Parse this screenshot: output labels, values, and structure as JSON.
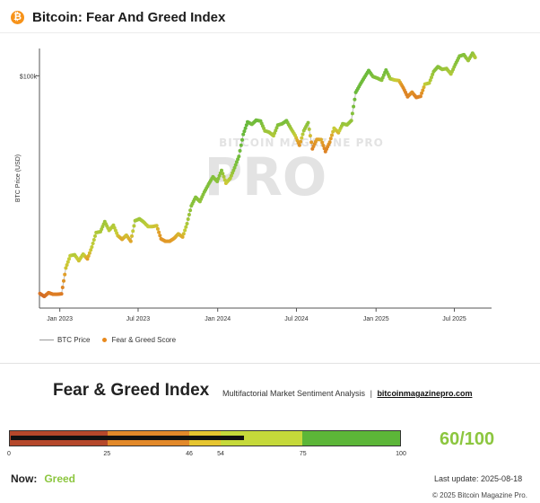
{
  "header": {
    "icon": "bitcoin-icon",
    "icon_glyph": "₿",
    "title": "Bitcoin: Fear And Greed Index"
  },
  "chart_data": {
    "type": "line",
    "title": "",
    "ylabel": "BTC Price (USD)",
    "xlabel": "",
    "y_scale": "log",
    "yticks": [
      {
        "value": 100000,
        "label": "$100k"
      }
    ],
    "ylim": [
      15000,
      125000
    ],
    "x_range": [
      "2022-11-15",
      "2025-09-25"
    ],
    "xticks": [
      {
        "date": "2023-01-01",
        "label": "Jan 2023"
      },
      {
        "date": "2023-07-01",
        "label": "Jul 2023"
      },
      {
        "date": "2024-01-01",
        "label": "Jan 2024"
      },
      {
        "date": "2024-07-01",
        "label": "Jul 2024"
      },
      {
        "date": "2025-01-01",
        "label": "Jan 2025"
      },
      {
        "date": "2025-07-01",
        "label": "Jul 2025"
      }
    ],
    "series": [
      {
        "name": "BTC Price",
        "points": [
          [
            "2022-11-16",
            16900,
            22
          ],
          [
            "2022-11-26",
            16500,
            18
          ],
          [
            "2022-12-06",
            17000,
            26
          ],
          [
            "2022-12-16",
            16800,
            27
          ],
          [
            "2022-12-26",
            16800,
            28
          ],
          [
            "2023-01-05",
            16850,
            26
          ],
          [
            "2023-01-15",
            20800,
            52
          ],
          [
            "2023-01-25",
            23000,
            55
          ],
          [
            "2023-02-04",
            23200,
            60
          ],
          [
            "2023-02-14",
            22100,
            52
          ],
          [
            "2023-02-24",
            23300,
            57
          ],
          [
            "2023-03-06",
            22400,
            46
          ],
          [
            "2023-03-16",
            24700,
            55
          ],
          [
            "2023-03-26",
            27800,
            60
          ],
          [
            "2023-04-05",
            28000,
            62
          ],
          [
            "2023-04-15",
            30400,
            65
          ],
          [
            "2023-04-25",
            28300,
            57
          ],
          [
            "2023-05-05",
            29500,
            60
          ],
          [
            "2023-05-15",
            27100,
            52
          ],
          [
            "2023-05-25",
            26300,
            47
          ],
          [
            "2023-06-04",
            27200,
            52
          ],
          [
            "2023-06-14",
            25900,
            47
          ],
          [
            "2023-06-24",
            30600,
            63
          ],
          [
            "2023-07-04",
            31100,
            65
          ],
          [
            "2023-07-14",
            30300,
            60
          ],
          [
            "2023-07-24",
            29200,
            55
          ],
          [
            "2023-08-03",
            29200,
            53
          ],
          [
            "2023-08-13",
            29400,
            52
          ],
          [
            "2023-08-23",
            26400,
            40
          ],
          [
            "2023-09-02",
            25900,
            42
          ],
          [
            "2023-09-12",
            25900,
            43
          ],
          [
            "2023-09-22",
            26500,
            46
          ],
          [
            "2023-10-02",
            27500,
            50
          ],
          [
            "2023-10-12",
            26800,
            48
          ],
          [
            "2023-10-22",
            29900,
            62
          ],
          [
            "2023-11-01",
            34600,
            70
          ],
          [
            "2023-11-11",
            37100,
            72
          ],
          [
            "2023-11-21",
            35800,
            68
          ],
          [
            "2023-12-01",
            38700,
            72
          ],
          [
            "2023-12-11",
            41300,
            73
          ],
          [
            "2023-12-21",
            43800,
            72
          ],
          [
            "2023-12-31",
            42200,
            70
          ],
          [
            "2024-01-10",
            46200,
            72
          ],
          [
            "2024-01-20",
            41600,
            52
          ],
          [
            "2024-01-30",
            43300,
            60
          ],
          [
            "2024-02-09",
            47200,
            72
          ],
          [
            "2024-02-19",
            51800,
            78
          ],
          [
            "2024-02-29",
            62000,
            82
          ],
          [
            "2024-03-10",
            68600,
            85
          ],
          [
            "2024-03-20",
            67300,
            75
          ],
          [
            "2024-03-30",
            69600,
            80
          ],
          [
            "2024-04-09",
            69100,
            77
          ],
          [
            "2024-04-19",
            63800,
            65
          ],
          [
            "2024-04-29",
            63100,
            65
          ],
          [
            "2024-05-09",
            61300,
            60
          ],
          [
            "2024-05-19",
            66900,
            72
          ],
          [
            "2024-05-29",
            67600,
            73
          ],
          [
            "2024-06-08",
            69300,
            75
          ],
          [
            "2024-06-18",
            65100,
            65
          ],
          [
            "2024-06-28",
            61500,
            55
          ],
          [
            "2024-07-08",
            56700,
            40
          ],
          [
            "2024-07-18",
            63900,
            65
          ],
          [
            "2024-07-28",
            68200,
            70
          ],
          [
            "2024-08-07",
            55100,
            32
          ],
          [
            "2024-08-17",
            59500,
            45
          ],
          [
            "2024-08-27",
            59400,
            48
          ],
          [
            "2024-09-06",
            53900,
            30
          ],
          [
            "2024-09-16",
            58200,
            40
          ],
          [
            "2024-09-26",
            65200,
            55
          ],
          [
            "2024-10-06",
            62800,
            50
          ],
          [
            "2024-10-16",
            67600,
            68
          ],
          [
            "2024-10-26",
            67000,
            65
          ],
          [
            "2024-11-05",
            69400,
            68
          ],
          [
            "2024-11-15",
            87300,
            82
          ],
          [
            "2024-11-25",
            93000,
            80
          ],
          [
            "2024-12-05",
            98600,
            78
          ],
          [
            "2024-12-15",
            104400,
            82
          ],
          [
            "2024-12-25",
            99400,
            73
          ],
          [
            "2025-01-04",
            98100,
            72
          ],
          [
            "2025-01-14",
            96500,
            70
          ],
          [
            "2025-01-24",
            104800,
            78
          ],
          [
            "2025-02-03",
            97700,
            65
          ],
          [
            "2025-02-13",
            96600,
            55
          ],
          [
            "2025-02-23",
            96200,
            52
          ],
          [
            "2025-03-05",
            90600,
            35
          ],
          [
            "2025-03-15",
            84300,
            30
          ],
          [
            "2025-03-25",
            87500,
            38
          ],
          [
            "2025-04-04",
            83800,
            30
          ],
          [
            "2025-04-14",
            84600,
            32
          ],
          [
            "2025-04-24",
            93400,
            55
          ],
          [
            "2025-05-04",
            94300,
            58
          ],
          [
            "2025-05-14",
            103500,
            68
          ],
          [
            "2025-05-24",
            107800,
            72
          ],
          [
            "2025-06-03",
            105400,
            66
          ],
          [
            "2025-06-13",
            106100,
            65
          ],
          [
            "2025-06-23",
            101500,
            60
          ],
          [
            "2025-07-03",
            109600,
            70
          ],
          [
            "2025-07-13",
            117500,
            72
          ],
          [
            "2025-07-23",
            118800,
            72
          ],
          [
            "2025-08-02",
            113300,
            65
          ],
          [
            "2025-08-12",
            120200,
            70
          ],
          [
            "2025-08-18",
            116200,
            60
          ]
        ]
      }
    ],
    "color_series": "Fear & Greed Score",
    "legend": [
      "BTC Price",
      "Fear & Greed Score"
    ],
    "legend_position": "bottom-left",
    "watermark": "BITCOIN MAGAZINE PRO"
  },
  "panel": {
    "title": "Fear & Greed Index",
    "subtitle": "Multifactorial Market Sentiment Analysis",
    "separator": "|",
    "link": "bitcoinmagazinepro.com",
    "gauge": {
      "segments": [
        {
          "from": 0,
          "to": 25,
          "color": "#b5482b"
        },
        {
          "from": 25,
          "to": 46,
          "color": "#e2892a"
        },
        {
          "from": 46,
          "to": 54,
          "color": "#e6c530"
        },
        {
          "from": 54,
          "to": 75,
          "color": "#c5d93a"
        },
        {
          "from": 75,
          "to": 100,
          "color": "#5cb638"
        }
      ],
      "ticks": [
        "0",
        "25",
        "46",
        "54",
        "75",
        "100"
      ],
      "value": 60
    },
    "score": "60/100",
    "now_label": "Now:",
    "now_value": "Greed",
    "last_update": "Last update: 2025-08-18",
    "copyright": "© 2025 Bitcoin Magazine Pro."
  }
}
